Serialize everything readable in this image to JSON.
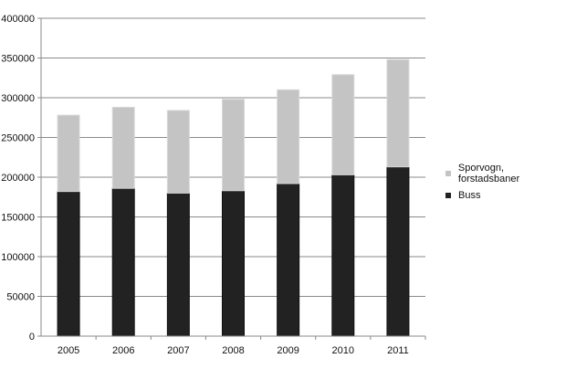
{
  "chart_data": {
    "type": "bar",
    "stacked": true,
    "title": "",
    "xlabel": "",
    "ylabel": "",
    "categories": [
      "2005",
      "2006",
      "2007",
      "2008",
      "2009",
      "2010",
      "2011"
    ],
    "series": [
      {
        "name": "Buss",
        "color": "#222222",
        "values": [
          182000,
          186000,
          180000,
          183000,
          192000,
          203000,
          213000
        ]
      },
      {
        "name": "Sporvogn, forstadsbaner",
        "color": "#c4c4c4",
        "values": [
          96000,
          102000,
          104000,
          115000,
          118000,
          126000,
          135000
        ]
      }
    ],
    "ylim": [
      0,
      400000
    ],
    "yticks": [
      "0",
      "50000",
      "100000",
      "150000",
      "200000",
      "250000",
      "300000",
      "350000",
      "400000"
    ],
    "grid": true,
    "legend_position": "right"
  },
  "legend": {
    "items": [
      {
        "label": "Sporvogn, forstadsbaner",
        "color": "#c4c4c4"
      },
      {
        "label": "Buss",
        "color": "#222222"
      }
    ]
  }
}
